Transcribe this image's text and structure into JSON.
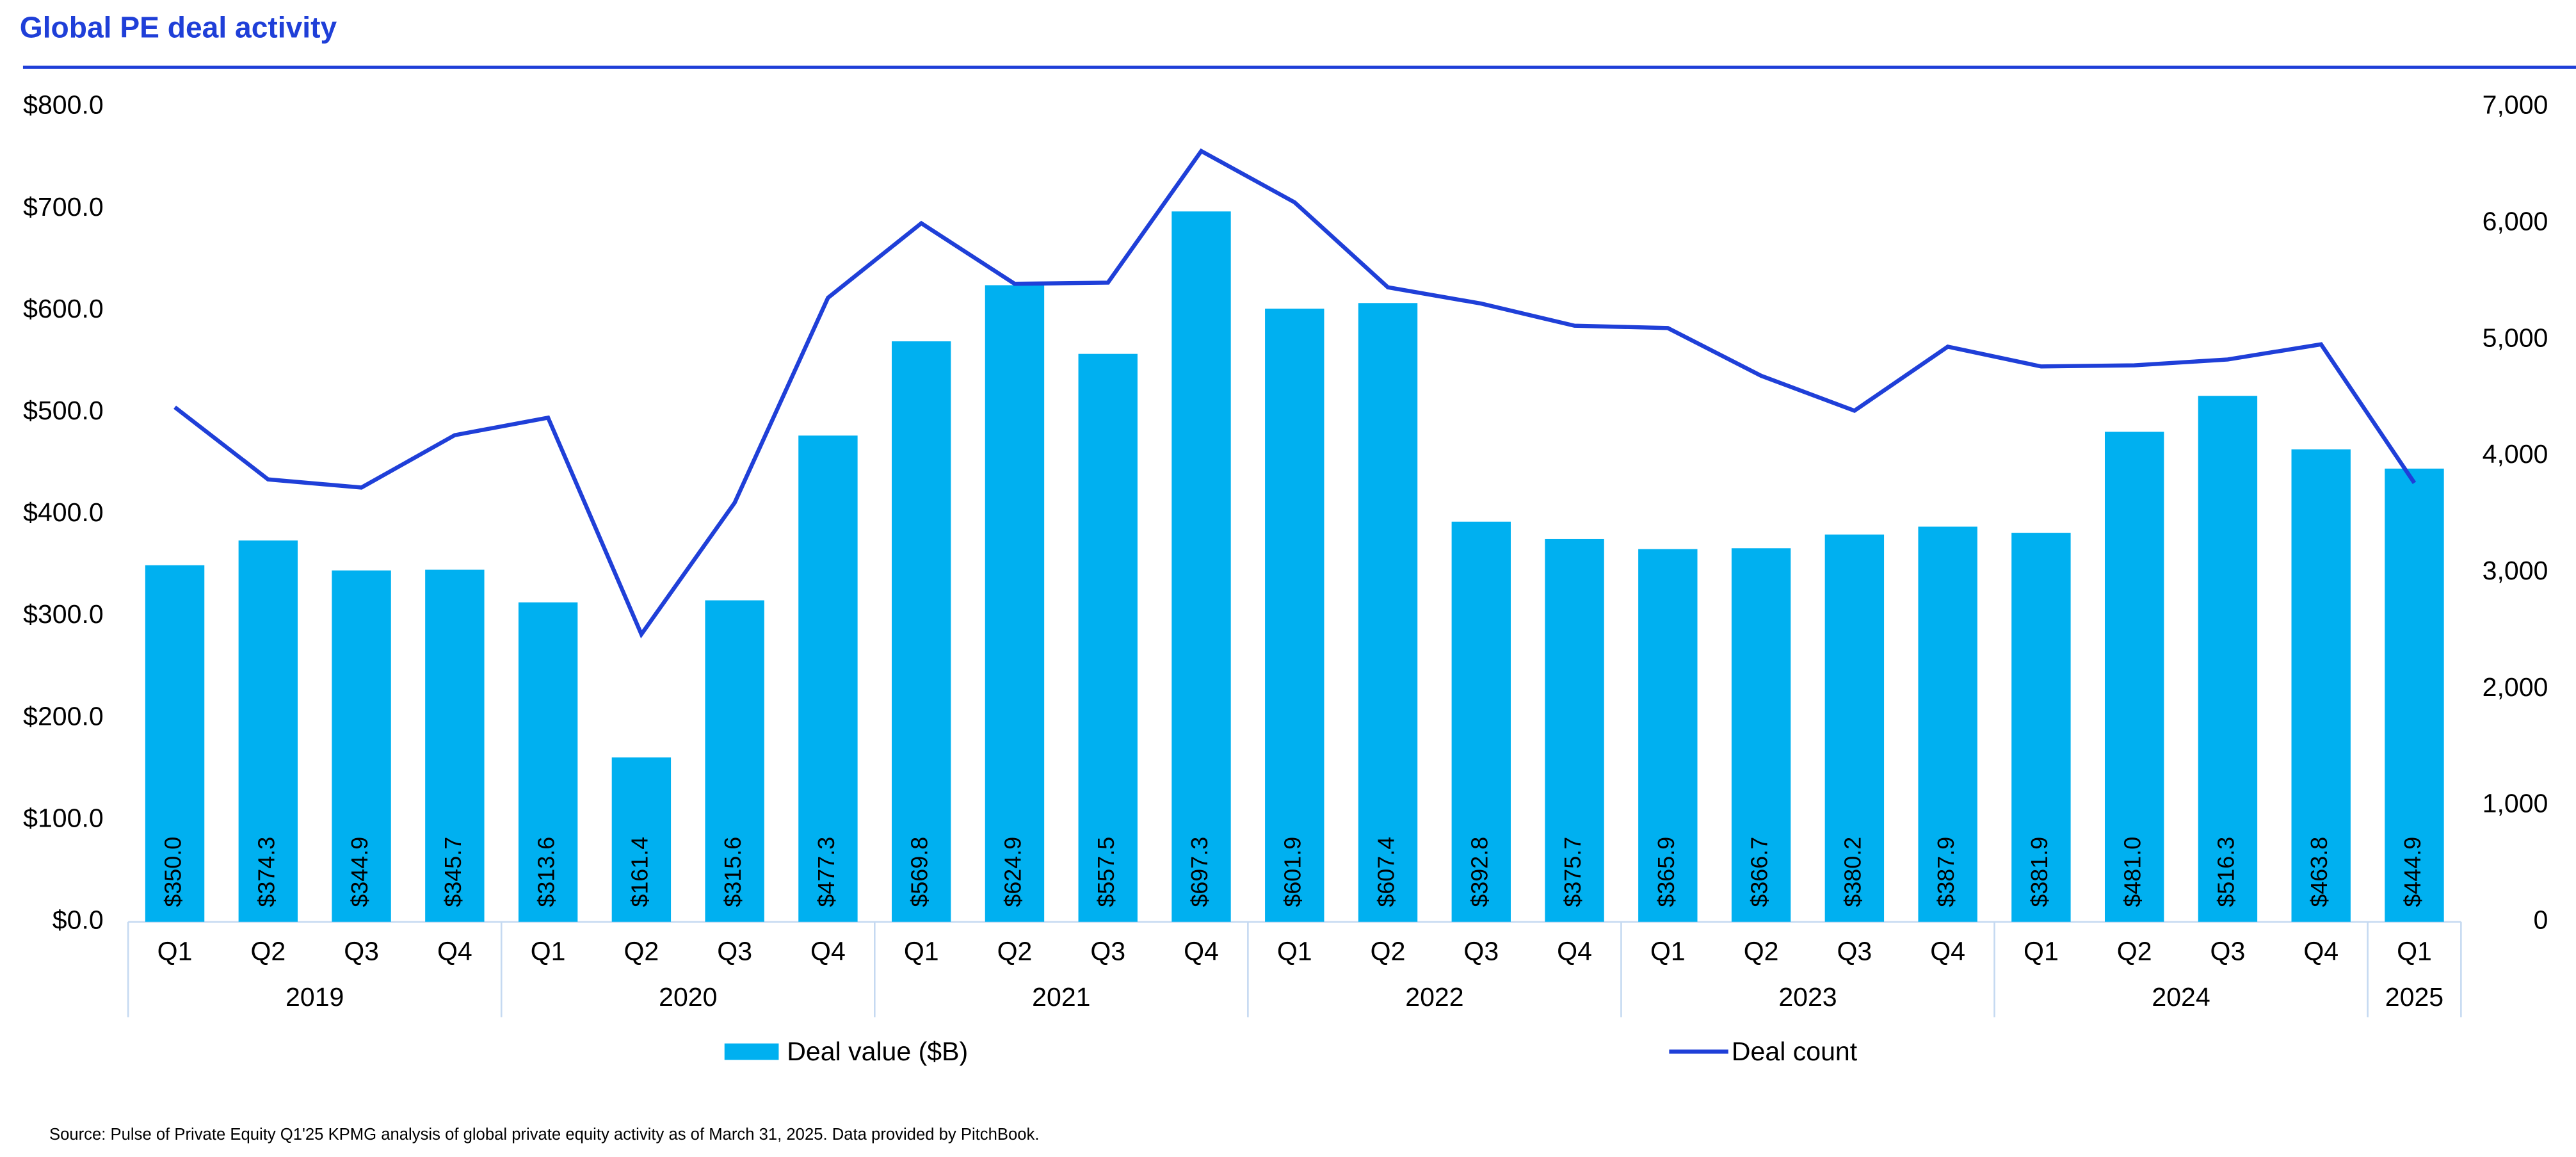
{
  "chart_data": {
    "type": "combo",
    "title": "Global PE deal activity",
    "source": "Source: Pulse of Private Equity Q1'25 KPMG analysis of global private equity activity as of March 31, 2025. Data provided by PitchBook.",
    "categories": [
      "Q1",
      "Q2",
      "Q3",
      "Q4",
      "Q1",
      "Q2",
      "Q3",
      "Q4",
      "Q1",
      "Q2",
      "Q3",
      "Q4",
      "Q1",
      "Q2",
      "Q3",
      "Q4",
      "Q1",
      "Q2",
      "Q3",
      "Q4",
      "Q1",
      "Q2",
      "Q3",
      "Q4",
      "Q1"
    ],
    "years": [
      "2019",
      null,
      null,
      null,
      "2020",
      null,
      null,
      null,
      "2021",
      null,
      null,
      null,
      "2022",
      null,
      null,
      null,
      "2023",
      null,
      null,
      null,
      "2024",
      null,
      null,
      null,
      "2025"
    ],
    "series": [
      {
        "name": "Deal value ($B)",
        "type": "bar",
        "color": "#00b0f0",
        "axis": "y",
        "values": [
          350.0,
          374.3,
          344.9,
          345.7,
          313.6,
          161.4,
          315.6,
          477.3,
          569.8,
          624.9,
          557.5,
          697.3,
          601.9,
          607.4,
          392.8,
          375.7,
          365.9,
          366.7,
          380.2,
          387.9,
          381.9,
          481.0,
          516.3,
          463.8,
          444.9
        ],
        "value_labels": [
          "$350.0",
          "$374.3",
          "$344.9",
          "$345.7",
          "$313.6",
          "$161.4",
          "$315.6",
          "$477.3",
          "$569.8",
          "$624.9",
          "$557.5",
          "$697.3",
          "$601.9",
          "$607.4",
          "$392.8",
          "$375.7",
          "$365.9",
          "$366.7",
          "$380.2",
          "$387.9",
          "$381.9",
          "$481.0",
          "$516.3",
          "$463.8",
          "$444.9"
        ]
      },
      {
        "name": "Deal count",
        "type": "line",
        "color": "#1f3fd8",
        "axis": "y2",
        "values": [
          4420,
          3800,
          3730,
          4180,
          4330,
          2470,
          3600,
          5360,
          6000,
          5480,
          5490,
          6620,
          6180,
          5450,
          5310,
          5120,
          5100,
          4690,
          4390,
          4940,
          4770,
          4780,
          4830,
          4960,
          3770
        ]
      }
    ],
    "ylim": [
      0,
      800
    ],
    "yticks": [
      {
        "value": 0,
        "label": "$0.0"
      },
      {
        "value": 100,
        "label": "$100.0"
      },
      {
        "value": 200,
        "label": "$200.0"
      },
      {
        "value": 300,
        "label": "$300.0"
      },
      {
        "value": 400,
        "label": "$400.0"
      },
      {
        "value": 500,
        "label": "$500.0"
      },
      {
        "value": 600,
        "label": "$600.0"
      },
      {
        "value": 700,
        "label": "$700.0"
      },
      {
        "value": 800,
        "label": "$800.0"
      }
    ],
    "y2lim": [
      0,
      7000
    ],
    "y2ticks": [
      0,
      {
        "value": 1000,
        "label": "1,000"
      },
      {
        "value": 2000,
        "label": "2,000"
      },
      {
        "value": 3000,
        "label": "3,000"
      },
      {
        "value": 4000,
        "label": "4,000"
      },
      {
        "value": 5000,
        "label": "5,000"
      },
      {
        "value": 6000,
        "label": "6,000"
      },
      {
        "value": 7000,
        "label": "7,000"
      }
    ],
    "grid": false,
    "legend": "bottom"
  }
}
